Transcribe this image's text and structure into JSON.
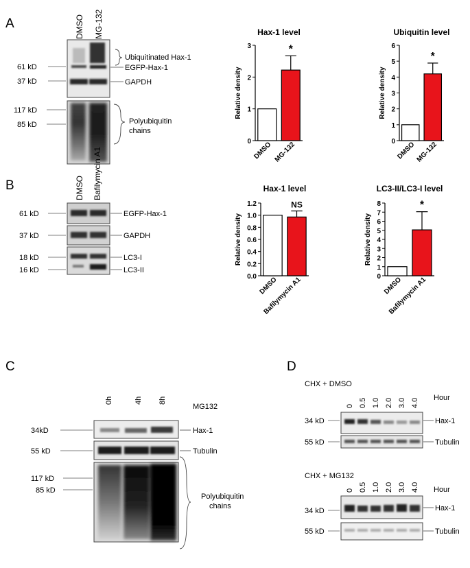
{
  "panels": {
    "A": {
      "letter": "A",
      "lanes": [
        "DMSO",
        "MG-132"
      ],
      "markers": [
        "61 kD",
        "37 kD",
        "117 kD",
        "85 kD"
      ],
      "labels": {
        "ubiq_line1": "Ubiquitinated Hax-1",
        "egfp": "EGFP-Hax-1",
        "gapdh": "GAPDH",
        "poly1": "Polyubiquitin",
        "poly2": "chains"
      }
    },
    "B": {
      "letter": "B",
      "lanes": [
        "DMSO",
        "Bafilymycin A1"
      ],
      "markers": [
        "61 kD",
        "37 kD",
        "18 kD",
        "16 kD"
      ],
      "labels": {
        "egfp": "EGFP-Hax-1",
        "gapdh": "GAPDH",
        "lc3i": "LC3-I",
        "lc3ii": "LC3-II"
      }
    },
    "C": {
      "letter": "C",
      "lanes": [
        "0h",
        "4h",
        "8h"
      ],
      "treatment": "MG132",
      "markers": [
        "34kD",
        "55 kD",
        "117 kD",
        "85 kD"
      ],
      "labels": {
        "hax": "Hax-1",
        "tub": "Tubulin",
        "poly1": "Polyubiquitin",
        "poly2": "chains"
      }
    },
    "D": {
      "letter": "D",
      "cond1": "CHX + DMSO",
      "cond2": "CHX + MG132",
      "lanes": [
        "0",
        "0.5",
        "1.0",
        "2.0",
        "3.0",
        "4.0"
      ],
      "hour": "Hour",
      "markers": [
        "34 kD",
        "55 kD"
      ],
      "labels": {
        "hax": "Hax-1",
        "tub": "Tubulin"
      }
    }
  },
  "chart_data": [
    {
      "type": "bar",
      "title": "Hax-1 level",
      "ylabel": "Relative density",
      "categories": [
        "DMSO",
        "MG-132"
      ],
      "values": [
        1.0,
        2.22
      ],
      "errors": [
        0,
        0.45
      ],
      "ylim": [
        0,
        3
      ],
      "yticks": [
        "0",
        "1",
        "2",
        "3"
      ],
      "annotation": "*",
      "colors": [
        "#ffffff",
        "#e8141b"
      ]
    },
    {
      "type": "bar",
      "title": "Ubiquitin level",
      "ylabel": "Relative density",
      "categories": [
        "DMSO",
        "MG-132"
      ],
      "values": [
        1.0,
        4.2
      ],
      "errors": [
        0,
        0.68
      ],
      "ylim": [
        0,
        6
      ],
      "yticks": [
        "0",
        "1",
        "2",
        "3",
        "4",
        "5",
        "6"
      ],
      "annotation": "*",
      "colors": [
        "#ffffff",
        "#e8141b"
      ]
    },
    {
      "type": "bar",
      "title": "Hax-1 level",
      "ylabel": "Relative density",
      "categories": [
        "DMSO",
        "Bafilymycin A1"
      ],
      "values": [
        1.0,
        0.97
      ],
      "errors": [
        0,
        0.1
      ],
      "ylim": [
        0,
        1.2
      ],
      "yticks": [
        "0.0",
        "0.2",
        "0.4",
        "0.6",
        "0.8",
        "1.0",
        "1.2"
      ],
      "annotation": "NS",
      "colors": [
        "#ffffff",
        "#e8141b"
      ]
    },
    {
      "type": "bar",
      "title": "LC3-II/LC3-I level",
      "ylabel": "Relative density",
      "categories": [
        "DMSO",
        "Bafilymycin A1"
      ],
      "values": [
        1.0,
        5.05
      ],
      "errors": [
        0,
        2.0
      ],
      "ylim": [
        0,
        8
      ],
      "yticks": [
        "0",
        "1",
        "2",
        "3",
        "4",
        "5",
        "6",
        "7",
        "8"
      ],
      "annotation": "*",
      "colors": [
        "#ffffff",
        "#e8141b"
      ]
    }
  ]
}
